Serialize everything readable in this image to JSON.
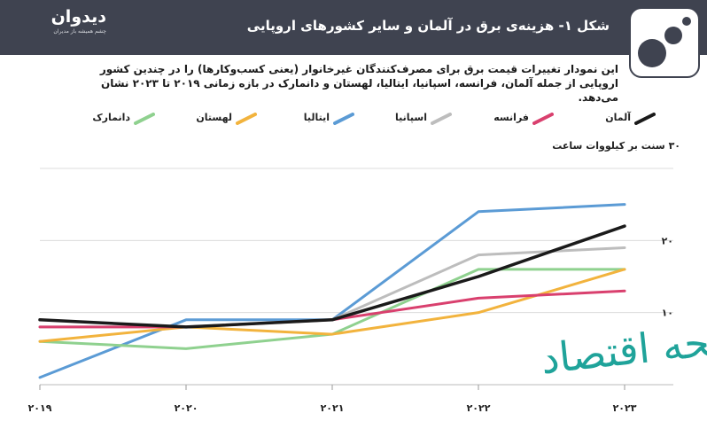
{
  "header": {
    "brand_name": "دیدوان",
    "brand_tagline": "چشم همیشه باز مدیران",
    "title": "شکل ۱- هزینه‌ی برق در آلمان و سایر کشورهای اروپایی"
  },
  "description": "این نمودار تغییرات قیمت برق برای مصرف‌کنندگان غیرخانوار (یعنی کسب‌وکارها) را در چندین کشور اروپایی از جمله آلمان، فرانسه، اسپانیا، ایتالیا، لهستان و دانمارک در بازه زمانی ۲۰۱۹ تا ۲۰۲۳ نشان می‌دهد.",
  "colors": {
    "header_bg": "#3f4350",
    "germany": "#1a1a1a",
    "france": "#d9406e",
    "spain": "#bdbdbd",
    "italy": "#5b9bd5",
    "poland": "#f2b33d",
    "denmark": "#8fd18f",
    "grid": "#dcdcdc",
    "watermark": "#1fa39a"
  },
  "watermark_text": "صفحه اقتصاد",
  "chart_data": {
    "type": "line",
    "ylabel": "۳۰ سنت بر کیلووات ساعت",
    "x": [
      2019,
      2020,
      2021,
      2022,
      2023
    ],
    "x_tick_labels": [
      "۲۰۱۹",
      "۲۰۲۰",
      "۲۰۲۱",
      "۲۰۲۲",
      "۲۰۲۳"
    ],
    "ylim": [
      0,
      30
    ],
    "y_ticks": [
      10,
      20
    ],
    "y_tick_labels": [
      "۱۰",
      "۲۰"
    ],
    "grid": true,
    "legend_position": "top",
    "series": [
      {
        "name": "آلمان",
        "color_key": "germany",
        "values": [
          9,
          8,
          9,
          15,
          22
        ]
      },
      {
        "name": "فرانسه",
        "color_key": "france",
        "values": [
          8,
          8,
          9,
          12,
          13
        ]
      },
      {
        "name": "اسپانیا",
        "color_key": "spain",
        "values": [
          8,
          8,
          9,
          18,
          19
        ]
      },
      {
        "name": "ایتالیا",
        "color_key": "italy",
        "values": [
          1,
          9,
          9,
          24,
          25
        ]
      },
      {
        "name": "لهستان",
        "color_key": "poland",
        "values": [
          6,
          8,
          7,
          10,
          16
        ]
      },
      {
        "name": "دانمارک",
        "color_key": "denmark",
        "values": [
          6,
          5,
          7,
          16,
          16
        ]
      }
    ]
  }
}
